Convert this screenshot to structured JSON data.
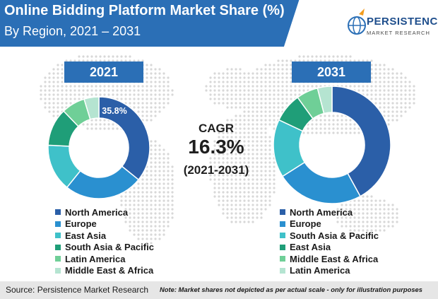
{
  "header": {
    "title": "Online Bidding Platform Market Share (%)",
    "subtitle": "By Region, 2021 – 2031"
  },
  "logo": {
    "name": "PERSISTENCE",
    "tagline": "MARKET RESEARCH",
    "icon": "globe-logo-icon"
  },
  "cagr": {
    "label": "CAGR",
    "value": "16.3%",
    "period": "(2021-2031)"
  },
  "footer": {
    "source": "Source: Persistence Market Research",
    "note": "Note: Market shares not depicted as per actual scale - only for illustration purposes"
  },
  "chart_data": [
    {
      "type": "pie",
      "donut": true,
      "title": "2021",
      "categories": [
        "North America",
        "Europe",
        "East Asia",
        "South Asia & Pacific",
        "Latin America",
        "Middle East & Africa"
      ],
      "values": [
        35.8,
        25,
        15,
        12,
        7.5,
        4.7
      ],
      "colors": [
        "#2b5fa8",
        "#2a90d0",
        "#3fc1c9",
        "#1f9e78",
        "#6fcf97",
        "#b5e4d1"
      ],
      "data_labels": [
        "35.8%",
        "",
        "",
        "",
        "",
        ""
      ],
      "legend": "bottom"
    },
    {
      "type": "pie",
      "donut": true,
      "title": "2031",
      "categories": [
        "North America",
        "Europe",
        "South Asia & Pacific",
        "East Asia",
        "Middle East & Africa",
        "Latin America"
      ],
      "values": [
        42,
        24,
        16,
        8,
        6,
        4
      ],
      "colors": [
        "#2b5fa8",
        "#2a90d0",
        "#3fc1c9",
        "#1f9e78",
        "#6fcf97",
        "#b5e4d1"
      ],
      "data_labels": [
        "",
        "",
        "",
        "",
        "",
        ""
      ],
      "legend": "bottom"
    }
  ]
}
